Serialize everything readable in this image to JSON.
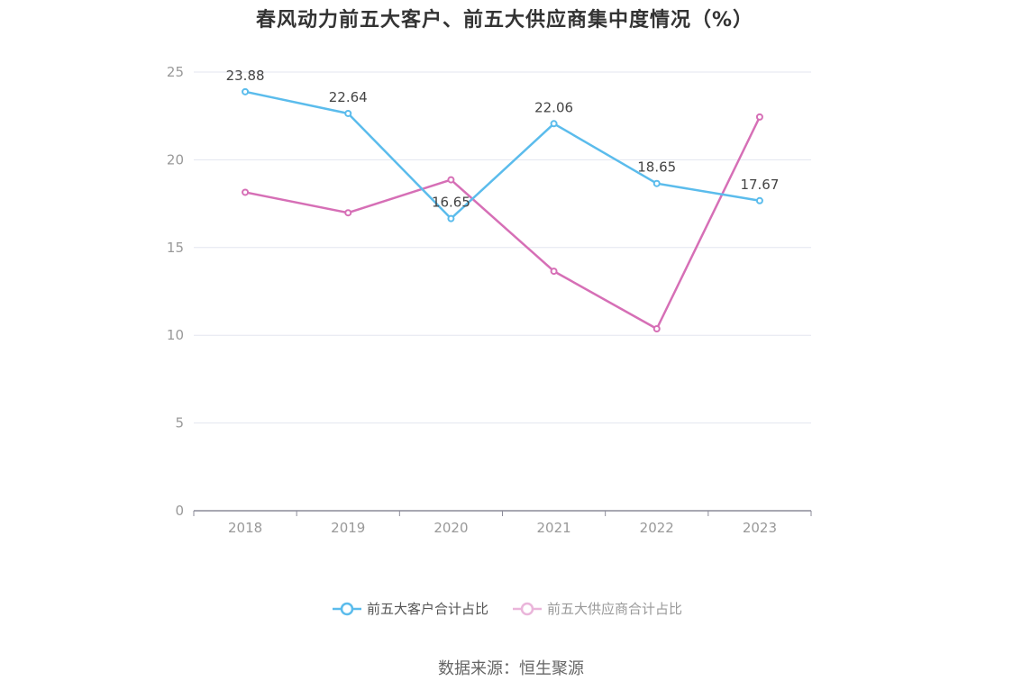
{
  "chart_data": {
    "type": "line",
    "title": "春风动力前五大客户、前五大供应商集中度情况（%）",
    "x": [
      "2018",
      "2019",
      "2020",
      "2021",
      "2022",
      "2023"
    ],
    "ylim": [
      0,
      25
    ],
    "yticks": [
      "0",
      "5",
      "10",
      "15",
      "20",
      "25"
    ],
    "grid": true,
    "legend_position": "bottom",
    "series": [
      {
        "name": "前五大客户合计占比",
        "values": [
          23.88,
          22.64,
          16.65,
          22.06,
          18.65,
          17.67
        ],
        "labels": [
          "23.88",
          "22.64",
          "16.65",
          "22.06",
          "18.65",
          "17.67"
        ],
        "color": "#5bbcec"
      },
      {
        "name": "前五大供应商合计占比",
        "values": [
          18.15,
          16.98,
          18.86,
          13.65,
          10.37,
          22.44
        ],
        "color": "#d66fb6",
        "legend_color": "#eab5da"
      }
    ]
  },
  "source_text": "数据来源：恒生聚源"
}
